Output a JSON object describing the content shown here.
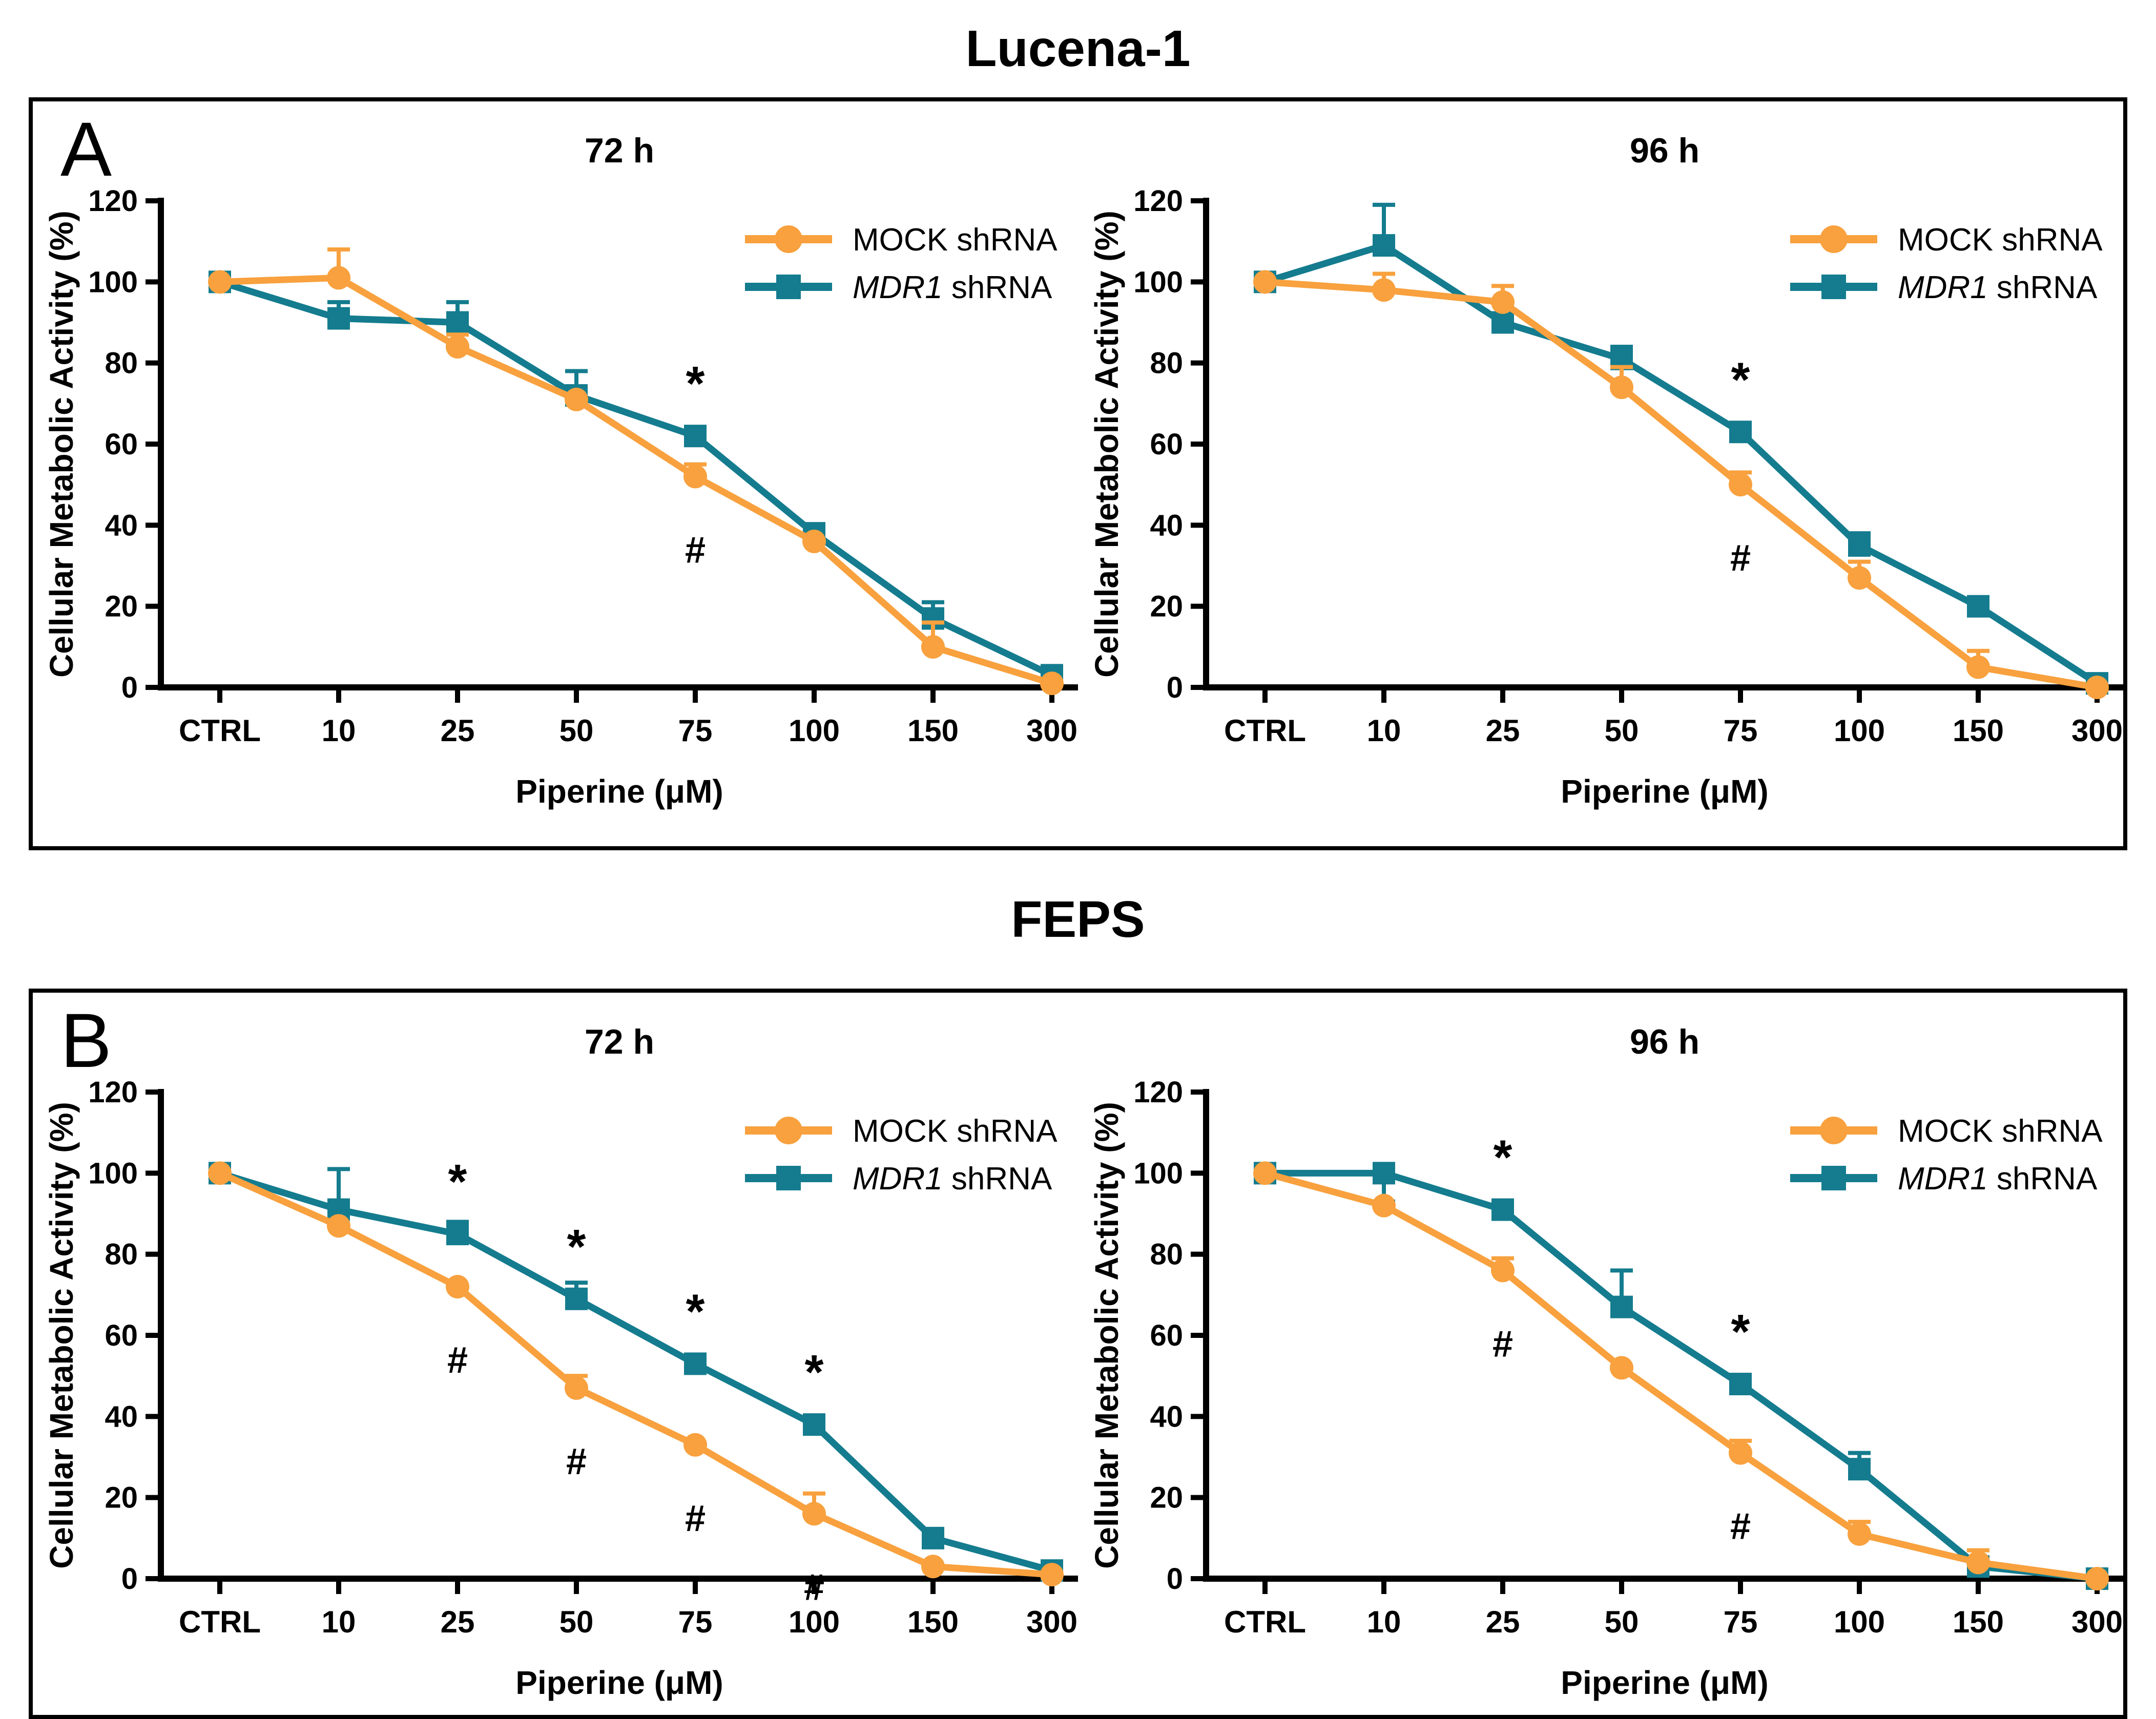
{
  "panels": [
    {
      "letter": "A",
      "title": "Lucena-1",
      "chart_indices": [
        0,
        1
      ]
    },
    {
      "letter": "B",
      "title": "FEPS",
      "chart_indices": [
        2,
        3
      ]
    }
  ],
  "colors": {
    "mock": "#F8A13E",
    "mdr1": "#147C8E",
    "axis": "#000000"
  },
  "legend": {
    "mock_label": "MOCK shRNA",
    "mdr1_label_italic": "MDR1",
    "mdr1_label_rest": " shRNA",
    "position": "top-right"
  },
  "axes": {
    "ylabel": "Cellular Metabolic Activity (%)",
    "xlabel": "Piperine (μM)",
    "yticks": [
      0,
      20,
      40,
      60,
      80,
      100,
      120
    ],
    "ylim": [
      0,
      120
    ],
    "grid": false
  },
  "annotation_glyphs": {
    "star": "*",
    "hash": "#"
  },
  "chart_data": [
    {
      "type": "line",
      "panel": "Lucena-1",
      "title": "72 h",
      "xlabel": "Piperine (μM)",
      "ylabel": "Cellular Metabolic Activity (%)",
      "ylim": [
        0,
        120
      ],
      "yticks": [
        0,
        20,
        40,
        60,
        80,
        100,
        120
      ],
      "categories": [
        "CTRL",
        "10",
        "25",
        "50",
        "75",
        "100",
        "150",
        "300"
      ],
      "series": [
        {
          "name": "MOCK shRNA",
          "color_key": "mock",
          "marker": "circle",
          "values": [
            100,
            101,
            84,
            71,
            52,
            36,
            10,
            1
          ],
          "err_up": [
            2,
            7,
            3,
            2,
            3,
            2,
            6,
            2
          ],
          "err_down": [
            0,
            0,
            0,
            0,
            0,
            0,
            0,
            0
          ]
        },
        {
          "name": "MDR1 shRNA",
          "color_key": "mdr1",
          "marker": "square",
          "values": [
            100,
            91,
            90,
            72,
            62,
            38,
            17,
            3
          ],
          "err_up": [
            2,
            4,
            5,
            6,
            2,
            2,
            4,
            2
          ],
          "err_down": [
            0,
            0,
            0,
            0,
            0,
            0,
            0,
            0
          ]
        }
      ],
      "annotations": {
        "star_indices": [
          4
        ],
        "hash_indices": [
          4
        ],
        "note": "* above MDR1 shRNA point, # below MOCK shRNA point"
      }
    },
    {
      "type": "line",
      "panel": "Lucena-1",
      "title": "96 h",
      "xlabel": "Piperine (μM)",
      "ylabel": "Cellular Metabolic Activity (%)",
      "ylim": [
        0,
        120
      ],
      "yticks": [
        0,
        20,
        40,
        60,
        80,
        100,
        120
      ],
      "categories": [
        "CTRL",
        "10",
        "25",
        "50",
        "75",
        "100",
        "150",
        "300"
      ],
      "series": [
        {
          "name": "MOCK shRNA",
          "color_key": "mock",
          "marker": "circle",
          "values": [
            100,
            98,
            95,
            74,
            50,
            27,
            5,
            0
          ],
          "err_up": [
            2,
            4,
            4,
            5,
            3,
            4,
            4,
            1
          ],
          "err_down": [
            0,
            0,
            0,
            0,
            0,
            0,
            0,
            0
          ]
        },
        {
          "name": "MDR1 shRNA",
          "color_key": "mdr1",
          "marker": "square",
          "values": [
            100,
            109,
            90,
            81,
            63,
            35,
            20,
            1
          ],
          "err_up": [
            2,
            10,
            2,
            3,
            2,
            3,
            2,
            1
          ],
          "err_down": [
            0,
            0,
            0,
            0,
            0,
            0,
            0,
            0
          ]
        }
      ],
      "annotations": {
        "star_indices": [
          4
        ],
        "hash_indices": [
          4
        ],
        "note": "* above MDR1 shRNA point, # below MOCK shRNA point"
      }
    },
    {
      "type": "line",
      "panel": "FEPS",
      "title": "72 h",
      "xlabel": "Piperine (μM)",
      "ylabel": "Cellular Metabolic Activity (%)",
      "ylim": [
        0,
        120
      ],
      "yticks": [
        0,
        20,
        40,
        60,
        80,
        100,
        120
      ],
      "categories": [
        "CTRL",
        "10",
        "25",
        "50",
        "75",
        "100",
        "150",
        "300"
      ],
      "series": [
        {
          "name": "MOCK shRNA",
          "color_key": "mock",
          "marker": "circle",
          "values": [
            100,
            87,
            72,
            47,
            33,
            16,
            3,
            1
          ],
          "err_up": [
            2,
            2,
            2,
            3,
            2,
            5,
            2,
            1
          ],
          "err_down": [
            0,
            0,
            0,
            0,
            0,
            0,
            0,
            0
          ]
        },
        {
          "name": "MDR1 shRNA",
          "color_key": "mdr1",
          "marker": "square",
          "values": [
            100,
            91,
            85,
            69,
            53,
            38,
            10,
            2
          ],
          "err_up": [
            2,
            10,
            3,
            4,
            2,
            2,
            2,
            1
          ],
          "err_down": [
            0,
            0,
            0,
            0,
            0,
            0,
            0,
            0
          ]
        }
      ],
      "annotations": {
        "star_indices": [
          2,
          3,
          4,
          5
        ],
        "hash_indices": [
          2,
          3,
          4,
          5
        ],
        "note": "* above MDR1 shRNA points, # below MOCK shRNA points"
      }
    },
    {
      "type": "line",
      "panel": "FEPS",
      "title": "96 h",
      "xlabel": "Piperine (μM)",
      "ylabel": "Cellular Metabolic Activity (%)",
      "ylim": [
        0,
        120
      ],
      "yticks": [
        0,
        20,
        40,
        60,
        80,
        100,
        120
      ],
      "categories": [
        "CTRL",
        "10",
        "25",
        "50",
        "75",
        "100",
        "150",
        "300"
      ],
      "series": [
        {
          "name": "MOCK shRNA",
          "color_key": "mock",
          "marker": "circle",
          "values": [
            100,
            92,
            76,
            52,
            31,
            11,
            4,
            0
          ],
          "err_up": [
            2,
            2,
            3,
            2,
            3,
            3,
            3,
            1
          ],
          "err_down": [
            0,
            0,
            0,
            0,
            0,
            0,
            0,
            0
          ]
        },
        {
          "name": "MDR1 shRNA",
          "color_key": "mdr1",
          "marker": "square",
          "values": [
            100,
            100,
            91,
            67,
            48,
            27,
            3,
            0
          ],
          "err_up": [
            1,
            2,
            2,
            9,
            2,
            4,
            1,
            1
          ],
          "err_down": [
            0,
            7,
            0,
            0,
            0,
            0,
            0,
            0
          ]
        }
      ],
      "annotations": {
        "star_indices": [
          2,
          4
        ],
        "hash_indices": [
          2,
          4
        ],
        "note": "* above MDR1 shRNA points, # below MOCK shRNA points"
      }
    }
  ]
}
